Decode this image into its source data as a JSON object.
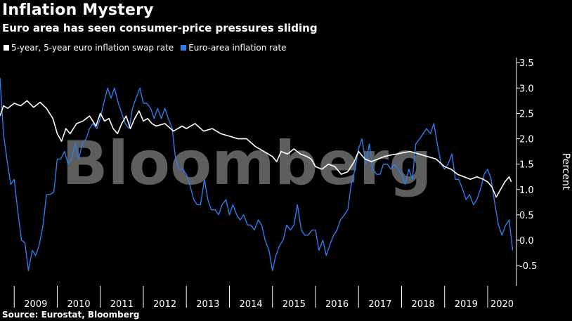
{
  "header": {
    "title": "Inflation Mystery",
    "subtitle": "Euro area has seen consumer-price pressures sliding"
  },
  "legend": [
    {
      "label": "5-year, 5-year euro inflation swap rate",
      "color": "#ffffff"
    },
    {
      "label": "Euro-area inflation rate",
      "color": "#2e7bea"
    }
  ],
  "watermark": "Bloomberg",
  "source": "Source: Eurostat, Bloomberg",
  "chart_data": {
    "type": "line",
    "title": "Inflation Mystery",
    "subtitle": "Euro area has seen consumer-price pressures sliding",
    "ylabel": "Percent",
    "ylim": [
      -0.9,
      3.6
    ],
    "yticks": [
      -0.5,
      0.0,
      0.5,
      1.0,
      1.5,
      2.0,
      2.5,
      3.0,
      3.5
    ],
    "ytick_labels": [
      "-0.5",
      "0.0",
      "0.5",
      "1.0",
      "1.5",
      "2.0",
      "2.5",
      "3.0",
      "3.5"
    ],
    "xlim": [
      2008.67,
      2020.67
    ],
    "x_tick_labels": [
      "2009",
      "2010",
      "2011",
      "2012",
      "2013",
      "2014",
      "2015",
      "2016",
      "2017",
      "2018",
      "2019",
      "2020"
    ],
    "grid": false,
    "legend_position": "top-left",
    "series": [
      {
        "name": "5-year, 5-year euro inflation swap rate",
        "color": "#ffffff",
        "x": [
          2008.67,
          2008.75,
          2008.85,
          2009.0,
          2009.15,
          2009.3,
          2009.45,
          2009.6,
          2009.75,
          2009.9,
          2010.0,
          2010.1,
          2010.2,
          2010.3,
          2010.45,
          2010.6,
          2010.75,
          2010.9,
          2011.0,
          2011.1,
          2011.2,
          2011.3,
          2011.4,
          2011.5,
          2011.6,
          2011.7,
          2011.8,
          2011.9,
          2012.0,
          2012.1,
          2012.2,
          2012.3,
          2012.5,
          2012.7,
          2012.9,
          2013.0,
          2013.2,
          2013.4,
          2013.6,
          2013.8,
          2014.0,
          2014.2,
          2014.4,
          2014.6,
          2014.8,
          2015.0,
          2015.1,
          2015.2,
          2015.35,
          2015.5,
          2015.65,
          2015.8,
          2015.9,
          2016.0,
          2016.15,
          2016.3,
          2016.45,
          2016.6,
          2016.75,
          2016.9,
          2017.0,
          2017.15,
          2017.3,
          2017.45,
          2017.6,
          2017.75,
          2017.9,
          2018.0,
          2018.2,
          2018.4,
          2018.6,
          2018.8,
          2019.0,
          2019.15,
          2019.3,
          2019.45,
          2019.6,
          2019.75,
          2019.9,
          2020.0,
          2020.1,
          2020.2,
          2020.3,
          2020.4,
          2020.5,
          2020.55
        ],
        "values": [
          2.45,
          2.65,
          2.6,
          2.7,
          2.65,
          2.75,
          2.62,
          2.72,
          2.6,
          2.4,
          2.1,
          1.95,
          2.2,
          2.1,
          2.3,
          2.35,
          2.45,
          2.25,
          2.5,
          2.35,
          2.4,
          2.2,
          2.1,
          2.3,
          2.45,
          2.2,
          2.4,
          2.55,
          2.35,
          2.4,
          2.3,
          2.25,
          2.3,
          2.15,
          2.25,
          2.2,
          2.3,
          2.15,
          2.2,
          2.1,
          2.05,
          2.0,
          2.0,
          1.85,
          1.75,
          1.65,
          1.55,
          1.75,
          1.7,
          1.8,
          1.7,
          1.65,
          1.6,
          1.45,
          1.4,
          1.5,
          1.45,
          1.3,
          1.35,
          1.55,
          1.75,
          1.6,
          1.55,
          1.6,
          1.65,
          1.68,
          1.7,
          1.72,
          1.75,
          1.7,
          1.65,
          1.6,
          1.45,
          1.4,
          1.3,
          1.25,
          1.2,
          1.25,
          1.2,
          1.15,
          1.05,
          0.85,
          1.0,
          1.15,
          1.25,
          1.15
        ]
      },
      {
        "name": "Euro-area inflation rate",
        "color": "#2e7bea",
        "x": [
          2008.67,
          2008.75,
          2008.83,
          2008.92,
          2009.0,
          2009.08,
          2009.17,
          2009.25,
          2009.33,
          2009.42,
          2009.5,
          2009.58,
          2009.67,
          2009.75,
          2009.83,
          2009.92,
          2010.0,
          2010.08,
          2010.17,
          2010.25,
          2010.33,
          2010.42,
          2010.5,
          2010.58,
          2010.67,
          2010.75,
          2010.83,
          2010.92,
          2011.0,
          2011.08,
          2011.17,
          2011.25,
          2011.33,
          2011.42,
          2011.5,
          2011.58,
          2011.67,
          2011.75,
          2011.83,
          2011.92,
          2012.0,
          2012.08,
          2012.17,
          2012.25,
          2012.33,
          2012.42,
          2012.5,
          2012.58,
          2012.67,
          2012.75,
          2012.83,
          2012.92,
          2013.0,
          2013.08,
          2013.17,
          2013.25,
          2013.33,
          2013.42,
          2013.5,
          2013.58,
          2013.67,
          2013.75,
          2013.83,
          2013.92,
          2014.0,
          2014.08,
          2014.17,
          2014.25,
          2014.33,
          2014.42,
          2014.5,
          2014.58,
          2014.67,
          2014.75,
          2014.83,
          2014.92,
          2015.0,
          2015.08,
          2015.17,
          2015.25,
          2015.33,
          2015.42,
          2015.5,
          2015.58,
          2015.67,
          2015.75,
          2015.83,
          2015.92,
          2016.0,
          2016.08,
          2016.17,
          2016.25,
          2016.33,
          2016.42,
          2016.5,
          2016.58,
          2016.67,
          2016.75,
          2016.83,
          2016.92,
          2017.0,
          2017.08,
          2017.17,
          2017.25,
          2017.33,
          2017.42,
          2017.5,
          2017.58,
          2017.67,
          2017.75,
          2017.83,
          2017.92,
          2018.0,
          2018.08,
          2018.17,
          2018.25,
          2018.33,
          2018.42,
          2018.5,
          2018.58,
          2018.67,
          2018.75,
          2018.83,
          2018.92,
          2019.0,
          2019.08,
          2019.17,
          2019.25,
          2019.33,
          2019.42,
          2019.5,
          2019.58,
          2019.67,
          2019.75,
          2019.83,
          2019.92,
          2020.0,
          2020.08,
          2020.17,
          2020.25,
          2020.33,
          2020.42,
          2020.5,
          2020.58
        ],
        "values": [
          3.2,
          2.1,
          1.6,
          1.1,
          1.2,
          0.6,
          0.0,
          -0.05,
          -0.6,
          -0.2,
          -0.3,
          -0.1,
          0.3,
          0.9,
          0.9,
          0.95,
          1.6,
          1.6,
          1.75,
          1.5,
          1.6,
          1.9,
          1.6,
          1.9,
          2.0,
          2.2,
          2.3,
          2.2,
          2.4,
          2.7,
          3.0,
          2.8,
          3.0,
          2.7,
          2.5,
          2.3,
          2.2,
          2.6,
          2.8,
          3.0,
          2.7,
          2.7,
          2.6,
          2.4,
          2.6,
          2.4,
          2.6,
          2.4,
          2.2,
          1.6,
          1.4,
          1.4,
          1.3,
          1.1,
          0.8,
          0.7,
          0.7,
          1.2,
          0.8,
          0.6,
          0.6,
          0.5,
          0.7,
          0.8,
          0.5,
          0.7,
          0.5,
          0.4,
          0.5,
          0.3,
          0.3,
          0.2,
          0.4,
          0.3,
          0.0,
          -0.2,
          -0.6,
          -0.3,
          -0.1,
          0.0,
          0.3,
          0.2,
          0.3,
          0.7,
          0.2,
          0.1,
          0.1,
          0.2,
          0.2,
          -0.2,
          0.0,
          -0.3,
          -0.1,
          0.1,
          0.2,
          0.4,
          0.5,
          0.6,
          1.1,
          1.4,
          1.8,
          2.0,
          1.5,
          1.9,
          1.4,
          1.3,
          1.3,
          1.5,
          1.5,
          1.4,
          1.5,
          1.4,
          1.3,
          1.1,
          1.4,
          1.2,
          1.9,
          2.0,
          2.1,
          2.2,
          2.1,
          2.3,
          1.9,
          1.5,
          1.4,
          1.5,
          1.7,
          1.2,
          1.2,
          1.0,
          0.8,
          0.9,
          0.7,
          0.8,
          1.0,
          1.3,
          1.4,
          1.2,
          0.7,
          0.3,
          0.1,
          0.3,
          0.4,
          -0.2
        ]
      }
    ]
  }
}
